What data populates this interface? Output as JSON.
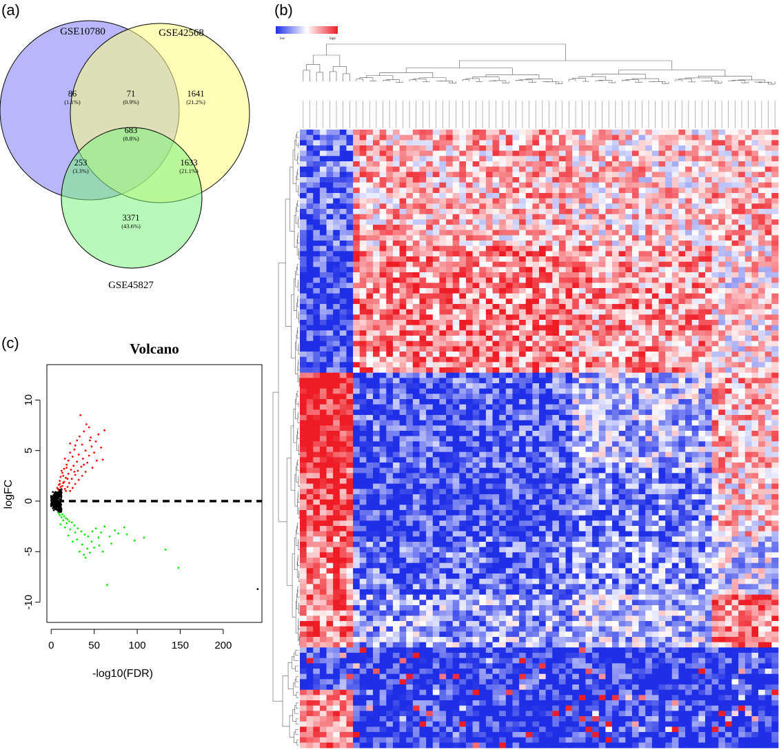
{
  "panels": {
    "a": "(a)",
    "b": "(b)",
    "c": "(c)"
  },
  "chart_data": [
    {
      "type": "venn",
      "sets": [
        "GSE10780",
        "GSE42568",
        "GSE45827"
      ],
      "regions": [
        {
          "sets": [
            "GSE10780"
          ],
          "count": "86",
          "pct": "(1.1%)"
        },
        {
          "sets": [
            "GSE10780",
            "GSE42568"
          ],
          "count": "71",
          "pct": "(0.9%)"
        },
        {
          "sets": [
            "GSE42568"
          ],
          "count": "1641",
          "pct": "(21.2%)"
        },
        {
          "sets": [
            "GSE10780",
            "GSE42568",
            "GSE45827"
          ],
          "count": "683",
          "pct": "(8.8%)"
        },
        {
          "sets": [
            "GSE10780",
            "GSE45827"
          ],
          "count": "253",
          "pct": "(3.3%)"
        },
        {
          "sets": [
            "GSE42568",
            "GSE45827"
          ],
          "count": "1633",
          "pct": "(21.1%)"
        },
        {
          "sets": [
            "GSE45827"
          ],
          "count": "3371",
          "pct": "(43.6%)"
        }
      ],
      "colors": {
        "GSE10780": "#7b7bf5",
        "GSE42568": "#ffff80",
        "GSE45827": "#7df27d"
      }
    },
    {
      "type": "heatmap",
      "rows": 117,
      "columns": 72,
      "color_scale": {
        "low": "#1f2fe6",
        "mid": "#ffffff",
        "high": "#ee1c25"
      },
      "legend_labels": [
        "low",
        "high"
      ],
      "clusters": {
        "row_breaks": [
          0.19,
          0.39,
          0.55,
          0.66,
          0.75,
          0.84
        ],
        "col_breaks": [
          0.115,
          0.565,
          0.865
        ]
      }
    },
    {
      "type": "scatter",
      "title": "Volcano",
      "xlabel": "-log10(FDR)",
      "ylabel": "logFC",
      "xlim": [
        -5,
        245
      ],
      "ylim": [
        -12,
        13.5
      ],
      "xticks": [
        0,
        50,
        100,
        150,
        200
      ],
      "yticks": [
        -10,
        -5,
        0,
        5,
        10
      ],
      "threshold_y": 0,
      "series": [
        {
          "color": "#ff0000",
          "points": [
            [
              34,
              8.5
            ],
            [
              41,
              7.6
            ],
            [
              44,
              7.3
            ],
            [
              62,
              7.0
            ],
            [
              38,
              6.9
            ],
            [
              55,
              6.6
            ],
            [
              46,
              6.3
            ],
            [
              30,
              6.0
            ],
            [
              52,
              5.9
            ],
            [
              22,
              5.7
            ],
            [
              36,
              5.6
            ],
            [
              47,
              5.4
            ],
            [
              58,
              5.3
            ],
            [
              27,
              5.1
            ],
            [
              40,
              5.0
            ],
            [
              50,
              4.8
            ],
            [
              32,
              4.6
            ],
            [
              44,
              4.5
            ],
            [
              25,
              4.4
            ],
            [
              37,
              4.2
            ],
            [
              60,
              4.1
            ],
            [
              20,
              4.0
            ],
            [
              30,
              3.9
            ],
            [
              42,
              3.8
            ],
            [
              18,
              3.6
            ],
            [
              26,
              3.5
            ],
            [
              35,
              3.4
            ],
            [
              48,
              3.3
            ],
            [
              15,
              3.2
            ],
            [
              23,
              3.1
            ],
            [
              31,
              3.0
            ],
            [
              40,
              2.9
            ],
            [
              13,
              2.8
            ],
            [
              20,
              2.7
            ],
            [
              28,
              2.6
            ],
            [
              36,
              2.5
            ],
            [
              11,
              2.4
            ],
            [
              17,
              2.3
            ],
            [
              24,
              2.2
            ],
            [
              32,
              2.1
            ],
            [
              10,
              2.0
            ],
            [
              15,
              1.9
            ],
            [
              21,
              1.8
            ],
            [
              28,
              1.7
            ],
            [
              9,
              1.6
            ],
            [
              13,
              1.5
            ],
            [
              19,
              1.4
            ],
            [
              25,
              1.3
            ],
            [
              8,
              1.2
            ],
            [
              12,
              1.1
            ],
            [
              17,
              1.0
            ],
            [
              22,
              1.0
            ],
            [
              7,
              1.3
            ],
            [
              10,
              1.7
            ],
            [
              14,
              2.5
            ],
            [
              18,
              3.3
            ],
            [
              12,
              3.0
            ],
            [
              16,
              4.2
            ],
            [
              22,
              4.8
            ],
            [
              28,
              5.5
            ],
            [
              33,
              6.4
            ],
            [
              45,
              6.0
            ],
            [
              53,
              4.0
            ],
            [
              38,
              3.6
            ],
            [
              27,
              2.9
            ],
            [
              19,
              2.2
            ],
            [
              14,
              1.8
            ],
            [
              9,
              1.1
            ],
            [
              11,
              1.4
            ],
            [
              16,
              1.2
            ]
          ]
        },
        {
          "color": "#00ee00",
          "points": [
            [
              65,
              -8.3
            ],
            [
              148,
              -6.6
            ],
            [
              133,
              -4.8
            ],
            [
              108,
              -3.6
            ],
            [
              97,
              -3.9
            ],
            [
              85,
              -2.6
            ],
            [
              78,
              -3.2
            ],
            [
              70,
              -4.2
            ],
            [
              62,
              -2.5
            ],
            [
              55,
              -3.6
            ],
            [
              50,
              -4.6
            ],
            [
              45,
              -5.1
            ],
            [
              40,
              -5.6
            ],
            [
              36,
              -4.3
            ],
            [
              33,
              -5.0
            ],
            [
              30,
              -3.8
            ],
            [
              28,
              -3.1
            ],
            [
              25,
              -4.0
            ],
            [
              22,
              -2.8
            ],
            [
              20,
              -3.4
            ],
            [
              18,
              -2.2
            ],
            [
              16,
              -2.6
            ],
            [
              14,
              -1.9
            ],
            [
              12,
              -1.6
            ],
            [
              11,
              -2.3
            ],
            [
              10,
              -1.4
            ],
            [
              9,
              -1.2
            ],
            [
              8,
              -1.1
            ],
            [
              13,
              -1.3
            ],
            [
              15,
              -1.5
            ],
            [
              17,
              -1.7
            ],
            [
              19,
              -1.8
            ],
            [
              21,
              -2.0
            ],
            [
              24,
              -2.1
            ],
            [
              27,
              -2.4
            ],
            [
              31,
              -2.7
            ],
            [
              35,
              -3.0
            ],
            [
              39,
              -3.3
            ],
            [
              43,
              -3.5
            ],
            [
              48,
              -3.0
            ],
            [
              52,
              -2.7
            ],
            [
              58,
              -3.1
            ],
            [
              47,
              -4.0
            ],
            [
              42,
              -4.7
            ],
            [
              38,
              -5.3
            ],
            [
              60,
              -5.0
            ],
            [
              68,
              -3.5
            ],
            [
              74,
              -2.9
            ],
            [
              88,
              -3.3
            ],
            [
              56,
              -4.4
            ]
          ]
        },
        {
          "color": "#000000",
          "points": [
            [
              240,
              -8.7
            ],
            [
              2,
              0.4
            ],
            [
              3,
              -0.5
            ],
            [
              4,
              0.8
            ],
            [
              5,
              -0.8
            ],
            [
              6,
              0.2
            ],
            [
              3,
              0.6
            ],
            [
              2,
              -0.3
            ],
            [
              7,
              0.5
            ],
            [
              5,
              0.9
            ],
            [
              4,
              -0.7
            ],
            [
              6,
              -0.4
            ],
            [
              8,
              0.3
            ],
            [
              3,
              -0.9
            ],
            [
              2,
              0.9
            ],
            [
              9,
              -0.6
            ],
            [
              1,
              0.1
            ],
            [
              1,
              -0.2
            ],
            [
              4,
              0.1
            ],
            [
              6,
              0.7
            ],
            [
              7,
              -0.8
            ],
            [
              5,
              0.3
            ],
            [
              3,
              0.0
            ],
            [
              8,
              -0.2
            ],
            [
              10,
              0.6
            ],
            [
              11,
              -0.5
            ],
            [
              12,
              0.8
            ],
            [
              9,
              0.9
            ],
            [
              10,
              -0.9
            ],
            [
              2,
              -0.7
            ],
            [
              0,
              0.5
            ],
            [
              0,
              -0.5
            ]
          ]
        }
      ]
    }
  ]
}
